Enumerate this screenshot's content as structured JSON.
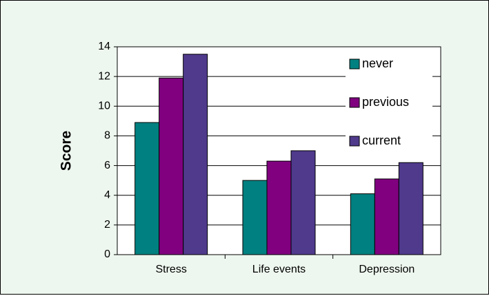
{
  "chart_data": {
    "type": "bar",
    "y_label": "Score",
    "categories": [
      "Stress",
      "Life events",
      "Depression"
    ],
    "series": [
      {
        "name": "never",
        "color": "#008080",
        "values": [
          8.9,
          5.0,
          4.1
        ]
      },
      {
        "name": "previous",
        "color": "#800080",
        "values": [
          11.9,
          6.3,
          5.1
        ]
      },
      {
        "name": "current",
        "color": "#4f3a8c",
        "values": [
          13.5,
          7.0,
          6.2
        ]
      }
    ],
    "ylim": [
      0,
      14
    ],
    "yticks": [
      0,
      2,
      4,
      6,
      8,
      10,
      12,
      14
    ],
    "grid": true,
    "legend": "top-right"
  }
}
